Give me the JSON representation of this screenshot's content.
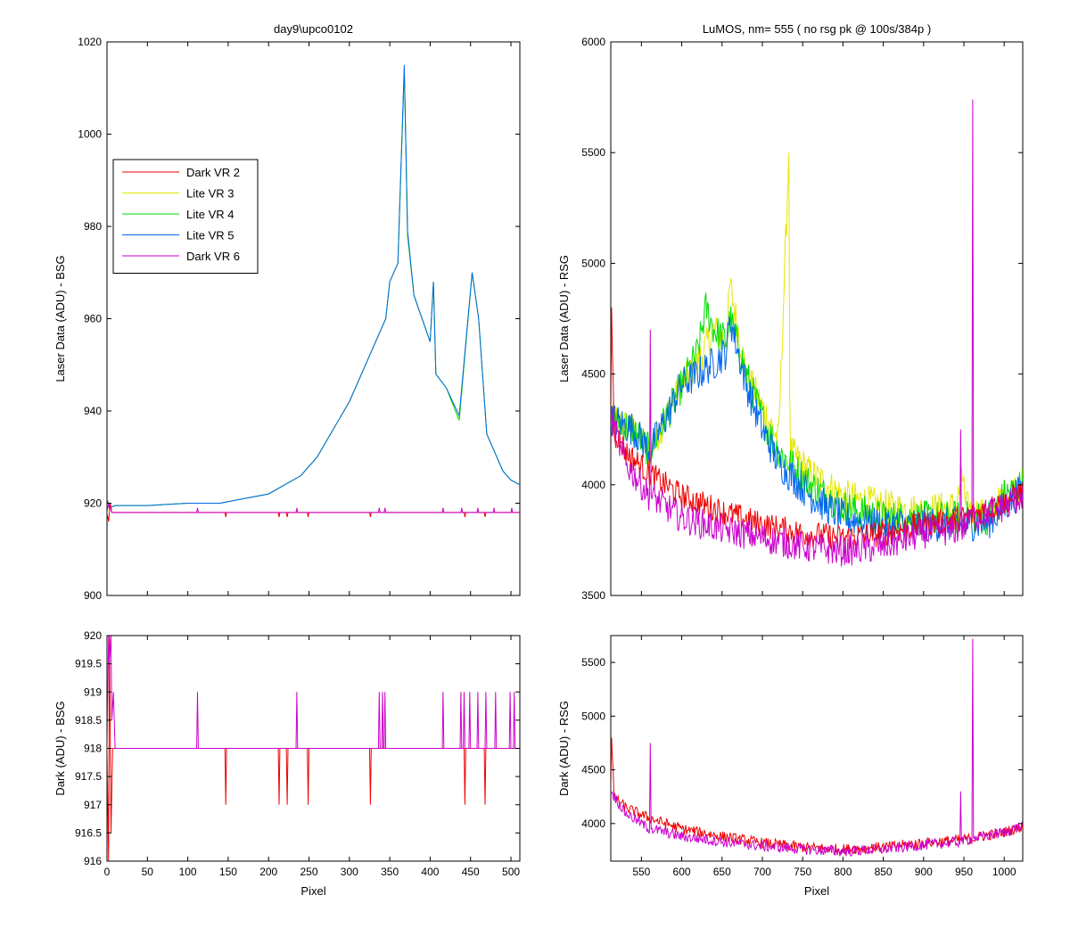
{
  "chart_data": [
    {
      "id": "tl",
      "type": "line",
      "title": "day9\\upco0102",
      "xlabel": "",
      "ylabel": "Laser Data (ADU) - BSG",
      "xlim": [
        0,
        511
      ],
      "ylim": [
        900,
        1020
      ],
      "xticks": [
        0,
        50,
        100,
        150,
        200,
        250,
        300,
        350,
        400,
        450,
        500
      ],
      "show_xtick_labels": false,
      "yticks": [
        900,
        920,
        940,
        960,
        980,
        1000,
        1020
      ],
      "ytick_labels": [
        "900",
        "920",
        "940",
        "960",
        "980",
        "1000",
        "1020"
      ],
      "legend": {
        "position": "upper-left",
        "entries": [
          "Dark VR 2",
          "Lite VR 3",
          "Lite VR 4",
          "Lite VR 5",
          "Dark VR 6"
        ]
      },
      "series": [
        {
          "name": "Lite VR 3",
          "color": "#e6e600",
          "x": [
            0,
            3,
            10,
            50,
            100,
            140,
            170,
            200,
            240,
            260,
            300,
            330,
            345,
            350,
            360,
            368,
            372,
            380,
            400,
            404,
            407,
            420,
            436,
            452,
            460,
            470,
            490,
            500,
            511
          ],
          "y": [
            921,
            919,
            919.5,
            919.5,
            920,
            920,
            921,
            922,
            926,
            930,
            942,
            954,
            960,
            968,
            972,
            1014,
            978,
            965,
            955,
            968,
            948,
            945,
            938,
            970,
            960,
            935,
            927,
            925,
            924
          ]
        },
        {
          "name": "Lite VR 4",
          "color": "#00dd00",
          "x": [
            0,
            3,
            10,
            50,
            100,
            140,
            170,
            200,
            240,
            260,
            300,
            330,
            345,
            350,
            360,
            368,
            372,
            380,
            400,
            404,
            407,
            420,
            436,
            452,
            460,
            470,
            490,
            500,
            511
          ],
          "y": [
            921,
            919,
            919.5,
            919.5,
            920,
            920,
            921,
            922,
            926,
            930,
            942,
            954,
            960,
            968,
            972,
            1014,
            978,
            965,
            955,
            968,
            948,
            945,
            938,
            970,
            960,
            935,
            927,
            925,
            924
          ]
        },
        {
          "name": "Lite VR 5",
          "color": "#0066ee",
          "x": [
            0,
            3,
            10,
            50,
            100,
            140,
            170,
            200,
            240,
            260,
            300,
            330,
            345,
            350,
            360,
            368,
            372,
            380,
            400,
            404,
            407,
            420,
            436,
            452,
            460,
            470,
            490,
            500,
            511
          ],
          "y": [
            921,
            919,
            919.5,
            919.5,
            920,
            920,
            921,
            922,
            926,
            930,
            942,
            954,
            960,
            968,
            972,
            1015,
            979,
            965,
            955,
            968,
            948,
            945,
            939,
            970,
            960,
            935,
            927,
            925,
            924
          ]
        },
        {
          "name": "Dark VR 2",
          "color": "#ee0000",
          "x": [
            0,
            2,
            4,
            6,
            10,
            146,
            147,
            148,
            212,
            213,
            214,
            222,
            223,
            224,
            248,
            249,
            250,
            325,
            326,
            327,
            442,
            443,
            444,
            467,
            468,
            469,
            511
          ],
          "y": [
            918,
            916,
            920,
            918,
            918,
            918,
            917,
            918,
            918,
            917,
            918,
            918,
            917,
            918,
            918,
            917,
            918,
            918,
            917,
            918,
            918,
            917,
            918,
            918,
            917,
            918,
            918
          ]
        },
        {
          "name": "Dark VR 6",
          "color": "#cc00cc",
          "x": [
            0,
            2,
            4,
            6,
            10,
            111,
            112,
            113,
            234,
            235,
            236,
            336,
            337,
            338,
            343,
            344,
            345,
            415,
            416,
            417,
            438,
            439,
            440,
            458,
            459,
            460,
            478,
            479,
            480,
            500,
            501,
            502,
            511
          ],
          "y": [
            918,
            920,
            919,
            918,
            918,
            918,
            919,
            918,
            918,
            919,
            918,
            918,
            919,
            918,
            918,
            919,
            918,
            918,
            919,
            918,
            918,
            919,
            918,
            918,
            919,
            918,
            918,
            919,
            918,
            918,
            919,
            918,
            918
          ]
        }
      ]
    },
    {
      "id": "bl",
      "type": "line",
      "title": "",
      "xlabel": "Pixel",
      "ylabel": "Dark (ADU) - BSG",
      "xlim": [
        0,
        511
      ],
      "ylim": [
        916,
        920
      ],
      "xticks": [
        0,
        50,
        100,
        150,
        200,
        250,
        300,
        350,
        400,
        450,
        500
      ],
      "xtick_labels": [
        "0",
        "50",
        "100",
        "150",
        "200",
        "250",
        "300",
        "350",
        "400",
        "450",
        "500"
      ],
      "show_xtick_labels": true,
      "yticks": [
        916,
        916.5,
        917,
        917.5,
        918,
        918.5,
        919,
        919.5,
        920
      ],
      "ytick_labels": [
        "916",
        "916.5",
        "917",
        "917.5",
        "918",
        "918.5",
        "919",
        "919.5",
        "920"
      ],
      "series": [
        {
          "name": "Dark VR 2",
          "color": "#ee0000",
          "x": [
            0,
            2,
            3,
            5,
            7,
            10,
            146,
            147,
            148,
            212,
            213,
            214,
            222,
            223,
            224,
            248,
            249,
            250,
            325,
            326,
            327,
            442,
            443,
            444,
            467,
            468,
            469,
            511
          ],
          "y": [
            918,
            916,
            920,
            916.5,
            918,
            918,
            918,
            917,
            918,
            918,
            917,
            918,
            918,
            917,
            918,
            918,
            917,
            918,
            918,
            917,
            918,
            918,
            917,
            918,
            918,
            917,
            918,
            918
          ]
        },
        {
          "name": "Dark VR 6",
          "color": "#cc00cc",
          "x": [
            0,
            2,
            3,
            5,
            6,
            8,
            10,
            111,
            112,
            113,
            234,
            235,
            236,
            336,
            337,
            338,
            340,
            341,
            342,
            343,
            344,
            345,
            415,
            416,
            417,
            437,
            438,
            439,
            441,
            442,
            443,
            448,
            449,
            450,
            458,
            459,
            460,
            468,
            469,
            470,
            480,
            481,
            482,
            498,
            499,
            500,
            503,
            504,
            505,
            511
          ],
          "y": [
            918,
            920,
            919.5,
            920,
            918.5,
            919,
            918,
            918,
            919,
            918,
            918,
            919,
            918,
            918,
            919,
            918,
            918,
            919,
            918,
            918,
            919,
            918,
            918,
            919,
            918,
            918,
            919,
            918,
            918,
            919,
            918,
            918,
            919,
            918,
            918,
            919,
            918,
            918,
            919,
            918,
            918,
            919,
            918,
            918,
            919,
            918,
            918,
            919,
            918,
            918
          ]
        }
      ]
    },
    {
      "id": "tr",
      "type": "line",
      "title": "LuMOS, nm= 555 ( no rsg pk @ 100s/384p )",
      "xlabel": "",
      "ylabel": "Laser Data (ADU) - RSG",
      "xlim": [
        512,
        1023
      ],
      "ylim": [
        3500,
        6000
      ],
      "xticks": [
        550,
        600,
        650,
        700,
        750,
        800,
        850,
        900,
        950,
        1000
      ],
      "show_xtick_labels": false,
      "yticks": [
        3500,
        4000,
        4500,
        5000,
        5500,
        6000
      ],
      "ytick_labels": [
        "3500",
        "4000",
        "4500",
        "5000",
        "5500",
        "6000"
      ],
      "series": [
        {
          "name": "Lite VR 3",
          "color": "#e6e600",
          "noise": 80,
          "x": [
            512,
            540,
            560,
            580,
            600,
            620,
            640,
            655,
            660,
            680,
            700,
            720,
            733,
            734,
            735,
            760,
            800,
            850,
            900,
            940,
            950,
            951,
            980,
            1000,
            1023
          ],
          "y": [
            4300,
            4250,
            4150,
            4300,
            4450,
            4550,
            4700,
            4650,
            4900,
            4500,
            4350,
            4200,
            5500,
            4400,
            4150,
            4050,
            3950,
            3900,
            3880,
            3900,
            4050,
            3900,
            3850,
            3950,
            4000
          ]
        },
        {
          "name": "Lite VR 4",
          "color": "#00dd00",
          "noise": 80,
          "x": [
            512,
            540,
            560,
            580,
            600,
            620,
            630,
            640,
            655,
            660,
            680,
            700,
            720,
            760,
            800,
            850,
            900,
            940,
            980,
            1000,
            1023
          ],
          "y": [
            4300,
            4250,
            4150,
            4300,
            4450,
            4600,
            4800,
            4700,
            4650,
            4750,
            4500,
            4300,
            4150,
            4000,
            3900,
            3850,
            3850,
            3850,
            3850,
            3950,
            4000
          ]
        },
        {
          "name": "Lite VR 5",
          "color": "#0066ee",
          "noise": 80,
          "x": [
            512,
            540,
            560,
            580,
            600,
            620,
            640,
            655,
            660,
            680,
            700,
            720,
            760,
            800,
            850,
            900,
            940,
            980,
            1000,
            1023
          ],
          "y": [
            4300,
            4250,
            4150,
            4300,
            4450,
            4500,
            4550,
            4600,
            4750,
            4450,
            4250,
            4100,
            3950,
            3850,
            3820,
            3820,
            3820,
            3830,
            3900,
            3980
          ]
        },
        {
          "name": "Dark VR 2",
          "color": "#ee0000",
          "noise": 60,
          "x": [
            512,
            513,
            516,
            530,
            560,
            600,
            650,
            700,
            750,
            800,
            850,
            900,
            950,
            1000,
            1023
          ],
          "y": [
            4300,
            4800,
            4250,
            4150,
            4050,
            3950,
            3880,
            3820,
            3780,
            3760,
            3780,
            3820,
            3850,
            3920,
            3970
          ]
        },
        {
          "name": "Dark VR 6",
          "color": "#cc00cc",
          "noise": 70,
          "x": [
            512,
            530,
            560,
            561,
            562,
            600,
            650,
            700,
            750,
            800,
            850,
            900,
            945,
            946,
            947,
            960,
            961,
            962,
            1000,
            1023
          ],
          "y": [
            4300,
            4100,
            3950,
            4700,
            3950,
            3850,
            3800,
            3760,
            3720,
            3700,
            3720,
            3780,
            3800,
            4250,
            3800,
            3850,
            5740,
            3850,
            3900,
            3950
          ]
        }
      ]
    },
    {
      "id": "br",
      "type": "line",
      "title": "",
      "xlabel": "Pixel",
      "ylabel": "Dark (ADU) - RSG",
      "xlim": [
        512,
        1023
      ],
      "ylim": [
        3650,
        5750
      ],
      "xticks": [
        550,
        600,
        650,
        700,
        750,
        800,
        850,
        900,
        950,
        1000
      ],
      "xtick_labels": [
        "550",
        "600",
        "650",
        "700",
        "750",
        "800",
        "850",
        "900",
        "950",
        "1000"
      ],
      "show_xtick_labels": true,
      "yticks": [
        4000,
        4500,
        5000,
        5500
      ],
      "ytick_labels": [
        "4000",
        "4500",
        "5000",
        "5500"
      ],
      "series": [
        {
          "name": "Dark VR 2",
          "color": "#ee0000",
          "noise": 50,
          "x": [
            512,
            513,
            516,
            530,
            560,
            600,
            650,
            700,
            750,
            800,
            850,
            900,
            950,
            1000,
            1023
          ],
          "y": [
            4300,
            4800,
            4250,
            4150,
            4050,
            3950,
            3880,
            3820,
            3780,
            3760,
            3780,
            3820,
            3850,
            3920,
            3970
          ]
        },
        {
          "name": "Dark VR 6",
          "color": "#cc00cc",
          "noise": 50,
          "x": [
            512,
            530,
            560,
            561,
            562,
            600,
            650,
            700,
            750,
            800,
            850,
            900,
            945,
            946,
            947,
            960,
            961,
            962,
            1000,
            1023
          ],
          "y": [
            4300,
            4100,
            3950,
            4750,
            3950,
            3880,
            3830,
            3790,
            3760,
            3740,
            3760,
            3800,
            3830,
            4300,
            3830,
            3860,
            5720,
            3860,
            3920,
            3980
          ]
        }
      ]
    }
  ]
}
